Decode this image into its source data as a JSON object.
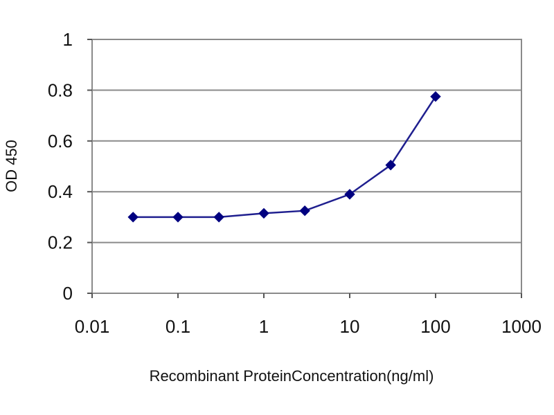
{
  "chart_data": {
    "type": "line",
    "title": "",
    "xlabel": "Recombinant ProteinConcentration(ng/ml)",
    "ylabel": "OD 450",
    "x_scale": "log",
    "xlim": [
      0.01,
      1000
    ],
    "ylim": [
      0,
      1
    ],
    "x_ticks": [
      0.01,
      0.1,
      1,
      10,
      100,
      1000
    ],
    "x_tick_labels": [
      "0.01",
      "0.1",
      "1",
      "10",
      "100",
      "1000"
    ],
    "y_ticks": [
      0,
      0.2,
      0.4,
      0.6,
      0.8,
      1
    ],
    "y_tick_labels": [
      "0",
      "0.2",
      "0.4",
      "0.6",
      "0.8",
      "1"
    ],
    "grid": "horizontal",
    "legend": "none",
    "series": [
      {
        "x": [
          0.03,
          0.1,
          0.3,
          1,
          3,
          10,
          30,
          100
        ],
        "y": [
          0.3,
          0.3,
          0.3,
          0.315,
          0.325,
          0.39,
          0.505,
          0.775
        ],
        "color": "#1f1f8f",
        "marker": "diamond"
      }
    ]
  }
}
